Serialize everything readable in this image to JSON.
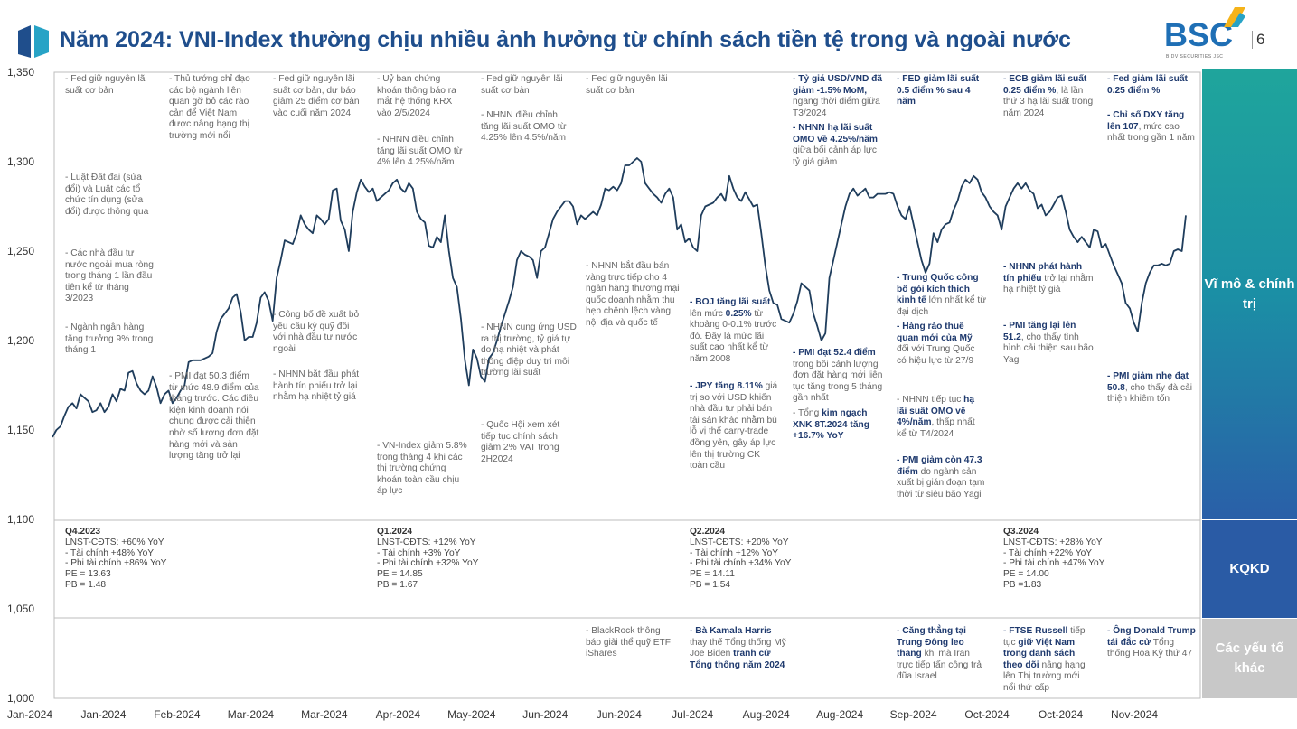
{
  "header": {
    "title": "Năm 2024: VNI-Index thường chịu nhiều ảnh hưởng từ chính sách tiền tệ trong và ngoài nước",
    "brand": "BSC",
    "brand_sub": "BIDV SECURITIES JSC",
    "page_number": "6",
    "accent_color": "#1f4e8c",
    "brand_color": "#1f6fb5"
  },
  "sections": [
    {
      "label": "Vĩ mô & chính trị",
      "color": "#1fa59c"
    },
    {
      "label": "KQKD",
      "color": "#2a5ba5"
    },
    {
      "label": "Các yếu tố khác",
      "color": "#c8c8c8"
    }
  ],
  "chart_data": {
    "type": "line",
    "title": "",
    "xlabel": "",
    "ylabel": "",
    "ylim": [
      1000,
      1350
    ],
    "yticks": [
      "1,000",
      "1,050",
      "1,100",
      "1,150",
      "1,200",
      "1,250",
      "1,300",
      "1,350"
    ],
    "xticks": [
      "Jan-2024",
      "Jan-2024",
      "Feb-2024",
      "Mar-2024",
      "Mar-2024",
      "Apr-2024",
      "May-2024",
      "Jun-2024",
      "Jun-2024",
      "Jul-2024",
      "Aug-2024",
      "Aug-2024",
      "Sep-2024",
      "Oct-2024",
      "Oct-2024",
      "Nov-2024"
    ],
    "line_color": "#1f3d5c",
    "series": [
      {
        "values": [
          1146,
          1150,
          1152,
          1158,
          1163,
          1165,
          1162,
          1170,
          1168,
          1166,
          1160,
          1161,
          1165,
          1160,
          1163,
          1170,
          1166,
          1173,
          1172,
          1182,
          1183,
          1176,
          1172,
          1170,
          1172,
          1180,
          1174,
          1165,
          1170,
          1172,
          1165,
          1168,
          1172,
          1175,
          1188,
          1189,
          1189,
          1189,
          1190,
          1191,
          1193,
          1205,
          1212,
          1215,
          1218,
          1224,
          1226,
          1216,
          1200,
          1202,
          1202,
          1210,
          1224,
          1227,
          1222,
          1211,
          1235,
          1245,
          1256,
          1255,
          1254,
          1260,
          1270,
          1265,
          1262,
          1260,
          1270,
          1268,
          1265,
          1268,
          1284,
          1285,
          1267,
          1262,
          1250,
          1272,
          1283,
          1290,
          1286,
          1283,
          1285,
          1278,
          1280,
          1282,
          1284,
          1288,
          1290,
          1285,
          1283,
          1288,
          1285,
          1272,
          1268,
          1266,
          1253,
          1252,
          1258,
          1255,
          1270,
          1250,
          1235,
          1230,
          1212,
          1189,
          1175,
          1195,
          1190,
          1180,
          1177,
          1190,
          1193,
          1200,
          1208,
          1215,
          1222,
          1230,
          1245,
          1250,
          1248,
          1247,
          1245,
          1235,
          1250,
          1252,
          1260,
          1268,
          1272,
          1275,
          1278,
          1278,
          1275,
          1265,
          1270,
          1268,
          1270,
          1272,
          1270,
          1276,
          1285,
          1284,
          1286,
          1284,
          1288,
          1298,
          1298,
          1300,
          1302,
          1300,
          1288,
          1285,
          1282,
          1280,
          1277,
          1282,
          1285,
          1280,
          1262,
          1265,
          1255,
          1257,
          1252,
          1250,
          1270,
          1275,
          1276,
          1277,
          1280,
          1282,
          1278,
          1292,
          1285,
          1280,
          1278,
          1283,
          1279,
          1275,
          1276,
          1260,
          1242,
          1228,
          1221,
          1220,
          1212,
          1211,
          1210,
          1215,
          1222,
          1232,
          1230,
          1228,
          1215,
          1208,
          1200,
          1204,
          1235,
          1245,
          1255,
          1265,
          1275,
          1282,
          1285,
          1281,
          1283,
          1285,
          1280,
          1280,
          1282,
          1282,
          1282,
          1283,
          1282,
          1275,
          1270,
          1268,
          1275,
          1265,
          1255,
          1245,
          1238,
          1243,
          1260,
          1255,
          1262,
          1265,
          1266,
          1273,
          1278,
          1286,
          1290,
          1288,
          1292,
          1290,
          1283,
          1280,
          1275,
          1272,
          1270,
          1262,
          1275,
          1280,
          1285,
          1288,
          1285,
          1288,
          1284,
          1282,
          1274,
          1276,
          1270,
          1272,
          1276,
          1280,
          1281,
          1272,
          1262,
          1258,
          1255,
          1258,
          1255,
          1252,
          1262,
          1261,
          1252,
          1254,
          1248,
          1242,
          1237,
          1232,
          1221,
          1218,
          1210,
          1205,
          1221,
          1232,
          1238,
          1242,
          1242,
          1243,
          1242,
          1243,
          1250,
          1251,
          1250,
          1270
        ]
      }
    ]
  },
  "macro_notes": [
    {
      "html": "- Fed giữ nguyên lãi suất cơ bản"
    },
    {
      "html": "- Luật Đất đai (sửa đổi) và Luật các tổ chức tín dụng (sửa đổi) được thông qua"
    },
    {
      "html": "- Các nhà đầu tư nước ngoài mua ròng trong tháng 1 lần đầu tiên kể từ tháng 3/2023"
    },
    {
      "html": "- Ngành ngân hàng tăng trưởng 9% trong tháng 1"
    },
    {
      "html": "- Thủ tướng chỉ đạo các bộ ngành liên quan gỡ bỏ các rào cản để Việt Nam được nâng hạng thị trường mới nổi"
    },
    {
      "html": "- PMI đạt 50.3 điểm từ mức 48.9 điểm của tháng trước. Các điều kiện kinh doanh nói chung được cải thiện nhờ số lượng đơn đặt hàng mới và sản lượng tăng trở lại"
    },
    {
      "html": "- Fed giữ nguyên lãi suất cơ bản, dự báo giảm 25 điểm cơ bản vào cuối năm 2024"
    },
    {
      "html": "- Công bố đề xuất bỏ yêu cầu ký quỹ đối với nhà đầu tư nước ngoài"
    },
    {
      "html": "- NHNN bắt đầu phát hành tín phiếu trở lại nhằm hạ nhiệt tỷ giá"
    },
    {
      "html": "- Uỷ ban chứng khoán thông báo ra mắt hệ thống KRX vào 2/5/2024"
    },
    {
      "html": "- NHNN điều chỉnh tăng lãi suất OMO từ 4% lên 4.25%/năm"
    },
    {
      "html": "- VN-Index giảm 5.8% trong tháng 4 khi các thị trường chứng khoán toàn cầu chịu áp lực"
    },
    {
      "html": "- Fed giữ nguyên lãi suất cơ bản"
    },
    {
      "html": "- NHNN điều chỉnh tăng lãi suất OMO từ 4.25% lên 4.5%/năm"
    },
    {
      "html": "- NHNN cung ứng USD ra thị trường, tỷ giá tự do hạ nhiệt và phát thông điệp duy trì môi trường lãi suất"
    },
    {
      "html": "- Quốc Hội xem xét tiếp tục chính sách giảm 2% VAT trong 2H2024"
    },
    {
      "html": "- Fed giữ nguyên lãi suất cơ bản"
    },
    {
      "html": "- NHNN bắt đầu bán vàng trực tiếp cho 4 ngân hàng thương mại quốc doanh nhằm thu hẹp chênh lệch vàng nội địa và quốc tế"
    },
    {
      "html": "<b>- BOJ tăng lãi suất</b> lên mức <b>0.25%</b> từ khoảng 0-0.1% trước đó. Đây là mức lãi suất cao nhất kể từ năm 2008"
    },
    {
      "html": "<b>- JPY tăng 8.11%</b> giá trị so với USD khiến nhà đầu tư phải bán tài sản khác nhằm bù lỗ vị thế carry-trade đồng yên, gây áp lực lên thị trường CK toàn cầu"
    },
    {
      "html": "<b>- Tỷ giá USD/VND đã giảm -1.5% MoM,</b> ngang thời điểm giữa T3/2024"
    },
    {
      "html": "<b>- NHNN hạ lãi suất OMO về 4.25%/năm</b> giữa bối cảnh áp lực tỷ giá giảm"
    },
    {
      "html": "<b>- PMI đạt 52.4 điểm</b> trong bối cảnh lượng đơn đặt hàng mới liên tục tăng trong 5 tháng gần nhất"
    },
    {
      "html": "- Tổng <b>kim ngạch XNK 8T.2024 tăng +16.7% YoY</b>"
    },
    {
      "html": "<b>- FED giảm lãi suất 0.5 điểm % sau 4 năm</b>"
    },
    {
      "html": "<b>- Trung Quốc công bố gói kích thích kinh tế</b> lớn nhất kể từ đại dịch"
    },
    {
      "html": "<b>- Hàng rào thuế quan mới của Mỹ</b> đối với Trung Quốc có hiệu lực từ 27/9"
    },
    {
      "html": "- NHNN tiếp tục <b>hạ lãi suất OMO về 4%/năm</b>, thấp nhất kể từ T4/2024"
    },
    {
      "html": "<b>- PMI giảm còn 47.3 điểm</b> do ngành sản xuất bị gián đoạn tạm thời từ siêu bão Yagi"
    },
    {
      "html": "<b>- ECB giảm lãi suất 0.25 điểm %</b>, là lần thứ 3 hạ lãi suất trong năm 2024"
    },
    {
      "html": "<b>- NHNN phát hành tín phiếu</b> trở lại nhằm hạ nhiệt tỷ giá"
    },
    {
      "html": "<b>- PMI tăng lại lên 51.2</b>, cho thấy tình hình cải thiện sau bão Yagi"
    },
    {
      "html": "<b>- Fed giảm lãi suất 0.25 điểm %</b>"
    },
    {
      "html": "<b>- Chỉ số DXY tăng lên 107</b>, mức cao nhất trong gần 1 năm"
    },
    {
      "html": "<b>- PMI giảm nhẹ đạt 50.8</b>, cho thấy đà cải thiện khiêm tốn"
    }
  ],
  "results": [
    {
      "quarter": "Q4.2023",
      "lines": [
        "LNST-CĐTS: +60% YoY",
        "- Tài chính +48% YoY",
        "- Phi tài chính +86% YoY",
        "PE = 13.63",
        "PB = 1.48"
      ]
    },
    {
      "quarter": "Q1.2024",
      "lines": [
        "LNST-CĐTS: +12% YoY",
        "- Tài chính +3% YoY",
        "- Phi tài chính +32% YoY",
        "PE = 14.85",
        "PB = 1.67"
      ]
    },
    {
      "quarter": "Q2.2024",
      "lines": [
        "LNST-CĐTS: +20% YoY",
        "- Tài chính +12% YoY",
        "- Phi tài chính +34% YoY",
        "PE = 14.11",
        "PB = 1.54"
      ]
    },
    {
      "quarter": "Q3.2024",
      "lines": [
        "LNST-CĐTS: +28% YoY",
        "- Tài chính +22% YoY",
        "- Phi tài chính +47% YoY",
        "PE = 14.00",
        "PB =1.83"
      ]
    }
  ],
  "other_notes": [
    {
      "html": "- BlackRock thông báo giải thể quỹ ETF iShares"
    },
    {
      "html": "<b>- Bà Kamala Harris</b> thay thế Tổng thống Mỹ Joe Biden <b>tranh cử Tổng thống năm 2024</b>"
    },
    {
      "html": "<b>- Căng thẳng tại Trung Đông leo thang</b> khi mà Iran trực tiếp tấn công trả đũa Israel"
    },
    {
      "html": "<b>- FTSE Russell</b> tiếp tục <b>giữ Việt Nam trong danh sách theo dõi</b> nâng hạng lên Thị trường mới nổi thứ cấp"
    },
    {
      "html": "<b>- Ông Donald Trump tái đắc cử</b> Tổng thống Hoa Kỳ thứ 47"
    }
  ]
}
